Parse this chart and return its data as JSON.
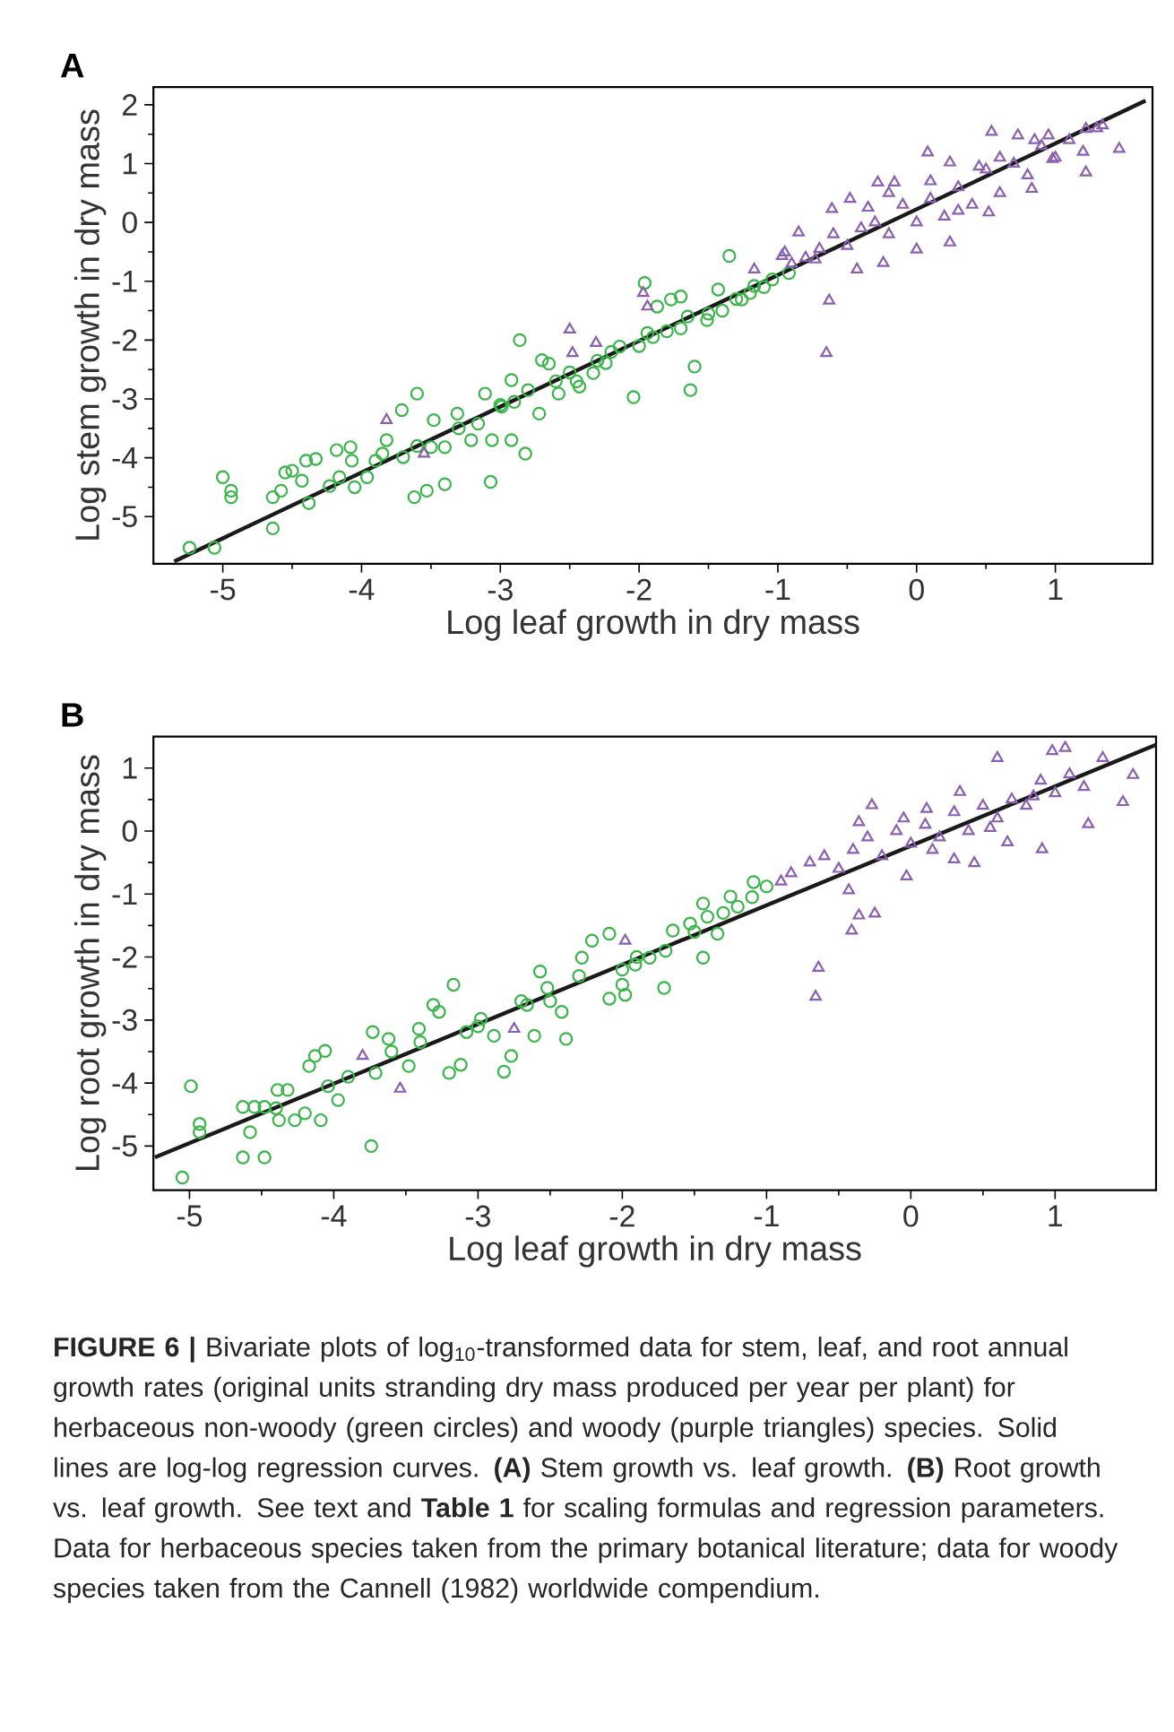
{
  "chart_data": [
    {
      "type": "scatter",
      "xlabel": "Log leaf growth in dry mass",
      "ylabel": "Log stem growth in dry mass",
      "xlim": [
        -5.5,
        1.7
      ],
      "ylim": [
        -5.8,
        2.3
      ],
      "xticks": [
        -5,
        -4,
        -3,
        -2,
        -1,
        0,
        1
      ],
      "yticks": [
        -5,
        -4,
        -3,
        -2,
        -1,
        0,
        1,
        2
      ],
      "annotations": [
        "A"
      ],
      "series": [
        {
          "marker": "circle",
          "color": "#39b54a",
          "x": [
            -5.24,
            -5.06,
            -5.0,
            -4.94,
            -4.94,
            -4.64,
            -4.64,
            -4.58,
            -4.55,
            -4.5,
            -4.43,
            -4.4,
            -4.33,
            -4.38,
            -4.23,
            -4.16,
            -4.18,
            -4.08,
            -4.07,
            -4.05,
            -3.96,
            -3.85,
            -3.82,
            -3.7,
            -3.6,
            -3.71,
            -3.62,
            -3.53,
            -3.5,
            -3.48,
            -3.4,
            -3.4,
            -3.31,
            -3.21,
            -3.16,
            -3.07,
            -3.06,
            -3.11,
            -2.99,
            -2.92,
            -2.86,
            -2.92,
            -2.82,
            -2.72,
            -2.7,
            -2.65,
            -2.58,
            -2.43,
            -2.33,
            -2.24,
            -2.14,
            -2.04,
            -1.96,
            -1.94,
            -1.87,
            -1.77,
            -1.7,
            -1.65,
            -1.63,
            -1.6,
            -1.51,
            -1.43,
            -1.35,
            -1.26,
            -1.17,
            -1.04,
            -0.92,
            -3.0,
            -2.8,
            -2.6,
            -2.5,
            -2.3,
            -2.2,
            -2.0,
            -1.9,
            -1.8,
            -1.7,
            -1.5,
            -1.4,
            -1.3,
            -1.2,
            -1.1,
            -3.3,
            -3.6,
            -3.9,
            -2.45,
            -2.9
          ],
          "values": [
            -5.53,
            -5.53,
            -4.33,
            -4.56,
            -4.67,
            -4.67,
            -5.2,
            -4.56,
            -4.25,
            -4.22,
            -4.39,
            -4.05,
            -4.02,
            -4.77,
            -4.48,
            -4.33,
            -3.87,
            -3.82,
            -4.05,
            -4.5,
            -4.33,
            -3.93,
            -3.7,
            -3.99,
            -2.91,
            -3.19,
            -4.67,
            -4.56,
            -3.82,
            -3.36,
            -3.82,
            -4.45,
            -3.25,
            -3.7,
            -3.42,
            -4.41,
            -3.7,
            -2.91,
            -3.13,
            -2.68,
            -2.0,
            -3.7,
            -3.93,
            -3.25,
            -2.34,
            -2.4,
            -2.91,
            -2.79,
            -2.56,
            -2.39,
            -2.11,
            -2.97,
            -1.03,
            -1.88,
            -1.43,
            -1.31,
            -1.26,
            -1.6,
            -2.85,
            -2.45,
            -1.66,
            -1.14,
            -0.57,
            -1.31,
            -1.08,
            -0.97,
            -0.86,
            -3.1,
            -2.85,
            -2.7,
            -2.55,
            -2.35,
            -2.2,
            -2.1,
            -1.95,
            -1.85,
            -1.8,
            -1.55,
            -1.5,
            -1.3,
            -1.2,
            -1.1,
            -3.5,
            -3.8,
            -4.05,
            -2.7,
            -3.05
          ]
        },
        {
          "marker": "triangle",
          "color": "#8b5fb0",
          "x": [
            -3.82,
            -3.55,
            -2.5,
            -2.48,
            -2.31,
            -1.97,
            -1.94,
            -0.63,
            -0.65,
            -1.17,
            -0.95,
            -0.85,
            -0.61,
            -0.48,
            -0.28,
            -0.16,
            0.08,
            0.24,
            0.54,
            0.73,
            0.95,
            1.22,
            1.34,
            1.46,
            1.22,
            0.98,
            0.83,
            0.52,
            0.24,
            0.0,
            -0.24,
            -0.43,
            -0.73,
            -0.97,
            -0.9,
            -0.8,
            -0.7,
            -0.6,
            -0.5,
            -0.4,
            -0.3,
            -0.2,
            -0.1,
            0.0,
            0.1,
            0.2,
            0.3,
            0.4,
            0.5,
            0.6,
            0.7,
            0.8,
            0.9,
            1.0,
            1.1,
            1.2,
            0.3,
            -0.2,
            0.1,
            0.6,
            1.3,
            0.45,
            -0.35,
            0.85
          ],
          "values": [
            -3.36,
            -3.93,
            -1.82,
            -2.22,
            -2.05,
            -1.2,
            -1.43,
            -1.33,
            -2.22,
            -0.8,
            -0.51,
            -0.17,
            0.23,
            0.4,
            0.68,
            0.68,
            1.19,
            1.02,
            1.54,
            1.48,
            1.48,
            1.59,
            1.65,
            1.25,
            0.85,
            1.08,
            0.57,
            0.17,
            -0.34,
            -0.46,
            -0.69,
            -0.8,
            -0.63,
            -0.57,
            -0.7,
            -0.6,
            -0.45,
            -0.2,
            -0.4,
            -0.1,
            0.0,
            -0.2,
            0.3,
            0.0,
            0.4,
            0.1,
            0.6,
            0.3,
            0.9,
            0.5,
            1.0,
            0.8,
            1.3,
            1.1,
            1.4,
            1.2,
            0.2,
            0.5,
            0.7,
            1.1,
            1.6,
            0.95,
            0.25,
            1.4
          ]
        },
        {
          "type": "line",
          "marker": "none",
          "color": "#1a1a1a",
          "x": [
            -5.35,
            1.65
          ],
          "values": [
            -5.76,
            2.07
          ]
        }
      ]
    },
    {
      "type": "scatter",
      "xlabel": "Log leaf growth in dry mass",
      "ylabel": "Log root growth in dry mass",
      "xlim": [
        -5.25,
        1.7
      ],
      "ylim": [
        -5.7,
        1.5
      ],
      "xticks": [
        -5,
        -4,
        -3,
        -2,
        -1,
        0,
        1
      ],
      "yticks": [
        -5,
        -4,
        -3,
        -2,
        -1,
        0,
        1
      ],
      "annotations": [
        "B",
        "**FIGURE 6 |** Bivariate plots of log$_{10}$-transformed data for stem, leaf, and root annual growth rates (original units stranding dry mass produced per year per plant) for herbaceous non-woody (green circles) and woody (purple triangles) species. Solid lines are log-log regression curves. **(A)** Stem growth vs. leaf growth. **(B)** Root growth vs. leaf growth. See text and **Table 1** for scaling formulas and regression parameters. Data for herbaceous species taken from the primary botanical literature; data for woody species taken from the Cannell (1982) worldwide compendium."
      ],
      "series": [
        {
          "marker": "circle",
          "color": "#39b54a",
          "x": [
            -5.05,
            -4.99,
            -4.93,
            -4.93,
            -4.63,
            -4.63,
            -4.58,
            -4.48,
            -4.55,
            -4.48,
            -4.39,
            -4.38,
            -4.32,
            -4.27,
            -4.2,
            -4.17,
            -4.13,
            -4.09,
            -4.06,
            -4.04,
            -3.97,
            -3.74,
            -3.73,
            -3.71,
            -3.62,
            -3.48,
            -3.41,
            -3.31,
            -3.27,
            -3.2,
            -3.17,
            -3.12,
            -3.08,
            -2.98,
            -2.89,
            -2.82,
            -2.77,
            -2.66,
            -2.61,
            -2.57,
            -2.52,
            -2.39,
            -2.42,
            -2.28,
            -2.21,
            -2.09,
            -2.09,
            -2.0,
            -1.98,
            -1.91,
            -1.81,
            -1.71,
            -1.65,
            -1.53,
            -1.44,
            -1.41,
            -1.34,
            -1.44,
            -1.25,
            -1.09,
            -1.0,
            -3.9,
            -3.6,
            -3.0,
            -2.7,
            -2.5,
            -2.3,
            -2.0,
            -1.9,
            -1.7,
            -1.5,
            -1.3,
            -1.2,
            -1.1,
            -4.4,
            -3.4
          ],
          "values": [
            -5.5,
            -4.05,
            -4.65,
            -4.78,
            -4.38,
            -5.18,
            -4.78,
            -5.18,
            -4.38,
            -4.38,
            -4.11,
            -4.59,
            -4.11,
            -4.59,
            -4.48,
            -3.73,
            -3.57,
            -4.59,
            -3.49,
            -4.05,
            -4.27,
            -5.0,
            -3.19,
            -3.84,
            -3.3,
            -3.73,
            -3.14,
            -2.76,
            -2.87,
            -3.84,
            -2.44,
            -3.71,
            -3.19,
            -2.98,
            -3.25,
            -3.82,
            -3.57,
            -2.76,
            -3.25,
            -2.23,
            -2.49,
            -3.3,
            -2.87,
            -2.01,
            -1.74,
            -1.63,
            -2.66,
            -2.44,
            -2.6,
            -2.12,
            -2.01,
            -2.49,
            -1.58,
            -1.47,
            -2.01,
            -1.36,
            -1.63,
            -1.15,
            -1.04,
            -0.81,
            -0.88,
            -3.9,
            -3.5,
            -3.1,
            -2.7,
            -2.7,
            -2.3,
            -2.2,
            -2.0,
            -1.9,
            -1.6,
            -1.3,
            -1.2,
            -1.05,
            -4.4,
            -3.35
          ]
        },
        {
          "marker": "triangle",
          "color": "#8b5fb0",
          "x": [
            -3.8,
            -3.54,
            -2.75,
            -1.98,
            -0.83,
            -0.64,
            -0.66,
            -0.41,
            -0.36,
            -0.25,
            -0.43,
            -0.27,
            -0.36,
            -0.03,
            0.3,
            0.44,
            0.6,
            0.98,
            1.07,
            1.33,
            1.54,
            1.47,
            1.23,
            0.91,
            0.67,
            0.34,
            0.11,
            -0.9,
            -0.7,
            -0.6,
            -0.5,
            -0.4,
            -0.3,
            -0.2,
            -0.1,
            0.0,
            0.1,
            0.2,
            0.3,
            0.4,
            0.5,
            0.6,
            0.7,
            0.8,
            0.9,
            1.0,
            1.1,
            1.2,
            0.15,
            -0.05,
            0.55,
            0.85
          ],
          "values": [
            -3.57,
            -4.09,
            -3.14,
            -1.74,
            -0.67,
            -2.17,
            -2.63,
            -1.58,
            -1.34,
            -1.31,
            -0.94,
            0.41,
            0.14,
            -0.72,
            -0.45,
            -0.51,
            1.16,
            1.27,
            1.32,
            1.16,
            0.89,
            0.46,
            0.11,
            -0.29,
            -0.18,
            0.62,
            0.35,
            -0.8,
            -0.5,
            -0.4,
            -0.6,
            -0.3,
            -0.1,
            -0.4,
            0.0,
            -0.2,
            0.1,
            -0.1,
            0.3,
            0.0,
            0.4,
            0.2,
            0.5,
            0.4,
            0.8,
            0.6,
            0.9,
            0.7,
            -0.3,
            0.2,
            0.05,
            0.55
          ]
        },
        {
          "type": "line",
          "marker": "none",
          "color": "#1a1a1a",
          "x": [
            -5.24,
            1.7
          ],
          "values": [
            -5.18,
            1.37
          ]
        }
      ]
    }
  ]
}
